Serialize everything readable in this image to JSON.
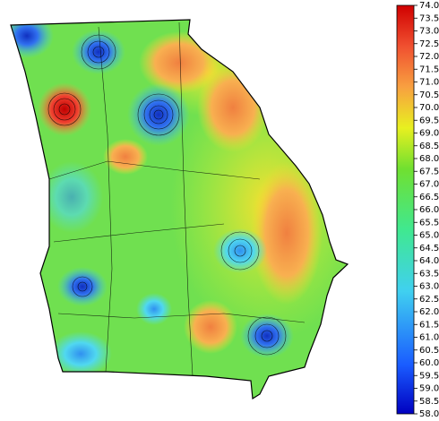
{
  "colorbar": {
    "range": [
      58,
      74
    ],
    "ticks": [
      {
        "value": 58,
        "label": "58.0"
      },
      58.5,
      {
        "value": 59,
        "label": "59.0"
      },
      59.5,
      {
        "value": 60,
        "label": "60.0"
      },
      60.5,
      {
        "value": 61,
        "label": "61.0"
      },
      61.5,
      {
        "value": 62,
        "label": "62.0"
      },
      62.5,
      {
        "value": 63,
        "label": "63.0"
      },
      63.5,
      {
        "value": 64,
        "label": "64.0"
      },
      64.5,
      {
        "value": 65,
        "label": "65.0"
      },
      65.5,
      {
        "value": 66,
        "label": "66.0"
      },
      66.5,
      {
        "value": 67,
        "label": "67.0"
      },
      67.5,
      {
        "value": 68,
        "label": "68.0"
      },
      68.5,
      {
        "value": 69,
        "label": "69.0"
      },
      69.5,
      {
        "value": 70,
        "label": "70.0"
      },
      70.5,
      {
        "value": 71,
        "label": "71.0"
      },
      71.5,
      {
        "value": 72,
        "label": "72.0"
      },
      72.5,
      {
        "value": 73,
        "label": "73.0"
      },
      73.5,
      {
        "value": 74,
        "label": "74.0"
      }
    ]
  }
}
